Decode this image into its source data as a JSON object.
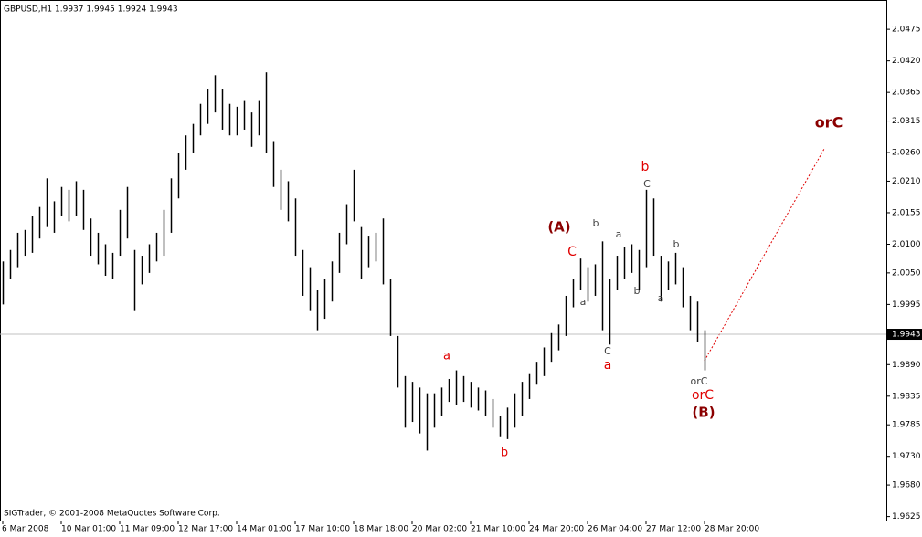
{
  "chart_data": {
    "type": "ohlc",
    "title": "GBPUSD,H1  1.9937 1.9945 1.9924 1.9943",
    "footer": "SIGTrader, © 2001-2008 MetaQuotes Software Corp.",
    "color": "#000000",
    "categories": [
      "6 Mar 2008",
      null,
      null,
      null,
      null,
      null,
      null,
      null,
      "10 Mar 01:00",
      null,
      null,
      null,
      null,
      null,
      null,
      null,
      "11 Mar 09:00",
      null,
      null,
      null,
      null,
      null,
      null,
      null,
      "12 Mar 17:00",
      null,
      null,
      null,
      null,
      null,
      null,
      null,
      "14 Mar 01:00",
      null,
      null,
      null,
      null,
      null,
      null,
      null,
      "17 Mar 10:00",
      null,
      null,
      null,
      null,
      null,
      null,
      null,
      "18 Mar 18:00",
      null,
      null,
      null,
      null,
      null,
      null,
      null,
      "20 Mar 02:00",
      null,
      null,
      null,
      null,
      null,
      null,
      null,
      "21 Mar 10:00",
      null,
      null,
      null,
      null,
      null,
      null,
      null,
      "24 Mar 20:00",
      null,
      null,
      null,
      null,
      null,
      null,
      null,
      "26 Mar 04:00",
      null,
      null,
      null,
      null,
      null,
      null,
      null,
      "27 Mar 12:00",
      null,
      null,
      null,
      null,
      null,
      null,
      null,
      "28 Mar 20:00"
    ],
    "low": [
      1.9995,
      2.004,
      2.006,
      2.008,
      2.0085,
      2.011,
      2.013,
      2.012,
      2.015,
      2.014,
      2.015,
      2.0125,
      2.008,
      2.0065,
      2.0045,
      2.004,
      2.008,
      2.011,
      1.9985,
      2.003,
      2.005,
      2.007,
      2.008,
      2.012,
      2.018,
      2.023,
      2.026,
      2.029,
      2.031,
      2.033,
      2.03,
      2.029,
      2.029,
      2.03,
      2.027,
      2.029,
      2.026,
      2.02,
      2.016,
      2.014,
      2.008,
      2.001,
      1.9985,
      1.995,
      1.997,
      2.0,
      2.005,
      2.01,
      2.014,
      2.004,
      2.006,
      2.007,
      2.003,
      1.994,
      1.985,
      1.978,
      1.979,
      1.977,
      1.974,
      1.978,
      1.98,
      1.9825,
      1.982,
      1.9825,
      1.9815,
      1.981,
      1.98,
      1.978,
      1.9765,
      1.976,
      1.978,
      1.98,
      1.983,
      1.9855,
      1.987,
      1.9895,
      1.9915,
      1.994,
      1.999,
      2.002,
      2.0,
      2.001,
      1.995,
      1.9925,
      2.002,
      2.004,
      2.005,
      2.002,
      2.006,
      2.008,
      2.0,
      2.002,
      2.003,
      1.999,
      1.995,
      1.993,
      1.988
    ],
    "high": [
      2.007,
      2.009,
      2.012,
      2.0125,
      2.015,
      2.0165,
      2.0215,
      2.0175,
      2.02,
      2.0195,
      2.021,
      2.0195,
      2.0145,
      2.012,
      2.01,
      2.0085,
      2.016,
      2.02,
      2.009,
      2.008,
      2.01,
      2.012,
      2.016,
      2.0215,
      2.026,
      2.029,
      2.031,
      2.0345,
      2.037,
      2.0395,
      2.037,
      2.0345,
      2.034,
      2.035,
      2.033,
      2.035,
      2.04,
      2.028,
      2.023,
      2.021,
      2.018,
      2.009,
      2.006,
      2.002,
      2.004,
      2.007,
      2.012,
      2.017,
      2.023,
      2.013,
      2.0115,
      2.012,
      2.0145,
      2.004,
      1.994,
      1.987,
      1.986,
      1.985,
      1.984,
      1.984,
      1.985,
      1.9865,
      1.988,
      1.987,
      1.986,
      1.985,
      1.9845,
      1.983,
      1.98,
      1.9815,
      1.984,
      1.986,
      1.9875,
      1.9895,
      1.992,
      1.9945,
      1.996,
      2.001,
      2.004,
      2.0075,
      2.006,
      2.0065,
      2.0105,
      2.004,
      2.008,
      2.0095,
      2.01,
      2.009,
      2.0195,
      2.018,
      2.008,
      2.007,
      2.0085,
      2.006,
      2.001,
      2.0,
      1.995
    ],
    "bid": 1.9943,
    "bid_color": "#000000",
    "ylim": [
      1.9618,
      2.0523
    ],
    "yticks": [
      2.0475,
      {
        "value": 2.042,
        "label": "2.0420"
      },
      2.0365,
      2.0315,
      {
        "value": 2.026,
        "label": "2.0260"
      },
      {
        "value": 2.021,
        "label": "2.0210"
      },
      2.0155,
      {
        "value": 2.01,
        "label": "2.0100"
      },
      {
        "value": 2.005,
        "label": "2.0050"
      },
      1.9995,
      {
        "value": 1.989,
        "label": "1.9890"
      },
      1.9835,
      1.9785,
      {
        "value": 1.973,
        "label": "1.9730"
      },
      {
        "value": 1.968,
        "label": "1.9680"
      },
      1.9625
    ],
    "annotations": [
      {
        "text": "a",
        "color": "#e00000"
      },
      {
        "text": "b",
        "color": "#e00000"
      },
      {
        "text": "(A)",
        "color": "#8b0000"
      },
      {
        "text": "C",
        "color": "#e00000"
      },
      {
        "text": "b",
        "color": "#404040"
      },
      {
        "text": "a",
        "color": "#404040"
      },
      {
        "text": "a",
        "color": "#404040"
      },
      {
        "text": "C",
        "color": "#404040"
      },
      {
        "text": "a",
        "color": "#e00000"
      },
      {
        "text": "b",
        "color": "#404040"
      },
      {
        "text": "b",
        "color": "#e00000"
      },
      {
        "text": "C",
        "color": "#404040"
      },
      {
        "text": "a",
        "color": "#404040"
      },
      {
        "text": "b",
        "color": "#404040"
      },
      {
        "text": "orC",
        "color": "#404040"
      },
      {
        "text": "orC",
        "color": "#e00000"
      },
      {
        "text": "(B)",
        "color": "#8b0000"
      },
      {
        "text": "orC",
        "color": "#8b0000"
      }
    ]
  }
}
